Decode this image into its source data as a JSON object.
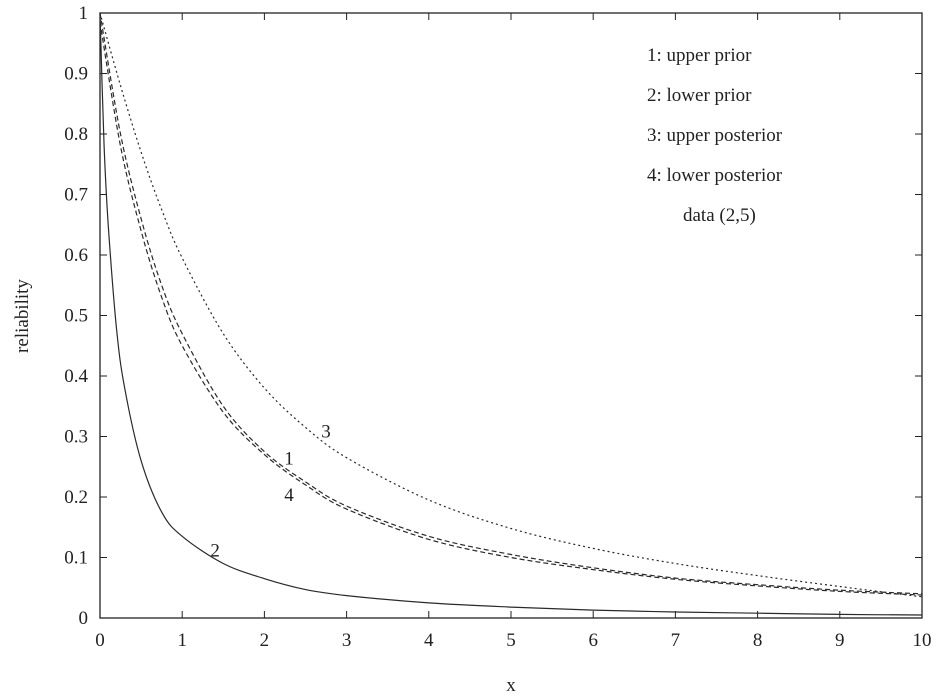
{
  "chart_data": {
    "type": "line",
    "title": "",
    "xlabel": "x",
    "ylabel": "reliability",
    "xlim": [
      0,
      10
    ],
    "ylim": [
      0,
      1
    ],
    "xticks": [
      0,
      1,
      2,
      3,
      4,
      5,
      6,
      7,
      8,
      9,
      10
    ],
    "yticks": [
      0,
      0.1,
      0.2,
      0.3,
      0.4,
      0.5,
      0.6,
      0.7,
      0.8,
      0.9,
      1
    ],
    "xtick_labels": [
      "0",
      "1",
      "2",
      "3",
      "4",
      "5",
      "6",
      "7",
      "8",
      "9",
      "10"
    ],
    "ytick_labels": [
      "0",
      "0.1",
      "0.2",
      "0.3",
      "0.4",
      "0.5",
      "0.6",
      "0.7",
      "0.8",
      "0.9",
      "1"
    ],
    "grid": false,
    "legend_position": "top-right",
    "legend": [
      "1: upper prior",
      "2: lower prior",
      "3: upper posterior",
      "4: lower posterior"
    ],
    "annotation": "data (2,5)",
    "series": [
      {
        "name": "1: upper prior",
        "label": "1",
        "label_at": [
          2.3,
          0.265
        ],
        "style": "dashed",
        "x": [
          0,
          0.25,
          0.5,
          0.75,
          1,
          1.5,
          2,
          2.5,
          3,
          4,
          5,
          6,
          7,
          8,
          9,
          10
        ],
        "y": [
          1,
          0.8,
          0.66,
          0.55,
          0.47,
          0.35,
          0.275,
          0.225,
          0.185,
          0.135,
          0.105,
          0.083,
          0.066,
          0.055,
          0.046,
          0.04
        ]
      },
      {
        "name": "2: lower prior",
        "label": "2",
        "label_at": [
          1.4,
          0.113
        ],
        "style": "solid",
        "x": [
          0,
          0.05,
          0.1,
          0.2,
          0.3,
          0.5,
          0.75,
          1,
          1.5,
          2,
          2.5,
          3,
          4,
          5,
          6,
          7,
          8,
          9,
          10
        ],
        "y": [
          1,
          0.78,
          0.65,
          0.48,
          0.38,
          0.26,
          0.175,
          0.135,
          0.09,
          0.065,
          0.047,
          0.037,
          0.025,
          0.018,
          0.013,
          0.01,
          0.008,
          0.006,
          0.005
        ]
      },
      {
        "name": "3: upper posterior",
        "label": "3",
        "label_at": [
          2.75,
          0.31
        ],
        "style": "dotted",
        "x": [
          0,
          0.25,
          0.5,
          0.75,
          1,
          1.5,
          2,
          2.5,
          3,
          4,
          5,
          6,
          7,
          8,
          9,
          10
        ],
        "y": [
          1,
          0.88,
          0.77,
          0.675,
          0.595,
          0.47,
          0.38,
          0.315,
          0.265,
          0.195,
          0.148,
          0.115,
          0.09,
          0.07,
          0.052,
          0.035
        ]
      },
      {
        "name": "4: lower posterior",
        "label": "4",
        "label_at": [
          2.3,
          0.205
        ],
        "style": "dashed",
        "x": [
          0,
          0.25,
          0.5,
          0.75,
          1,
          1.5,
          2,
          2.5,
          3,
          4,
          5,
          6,
          7,
          8,
          9,
          10
        ],
        "y": [
          0.985,
          0.78,
          0.64,
          0.53,
          0.45,
          0.34,
          0.27,
          0.22,
          0.18,
          0.13,
          0.1,
          0.08,
          0.064,
          0.053,
          0.044,
          0.038
        ]
      }
    ]
  }
}
